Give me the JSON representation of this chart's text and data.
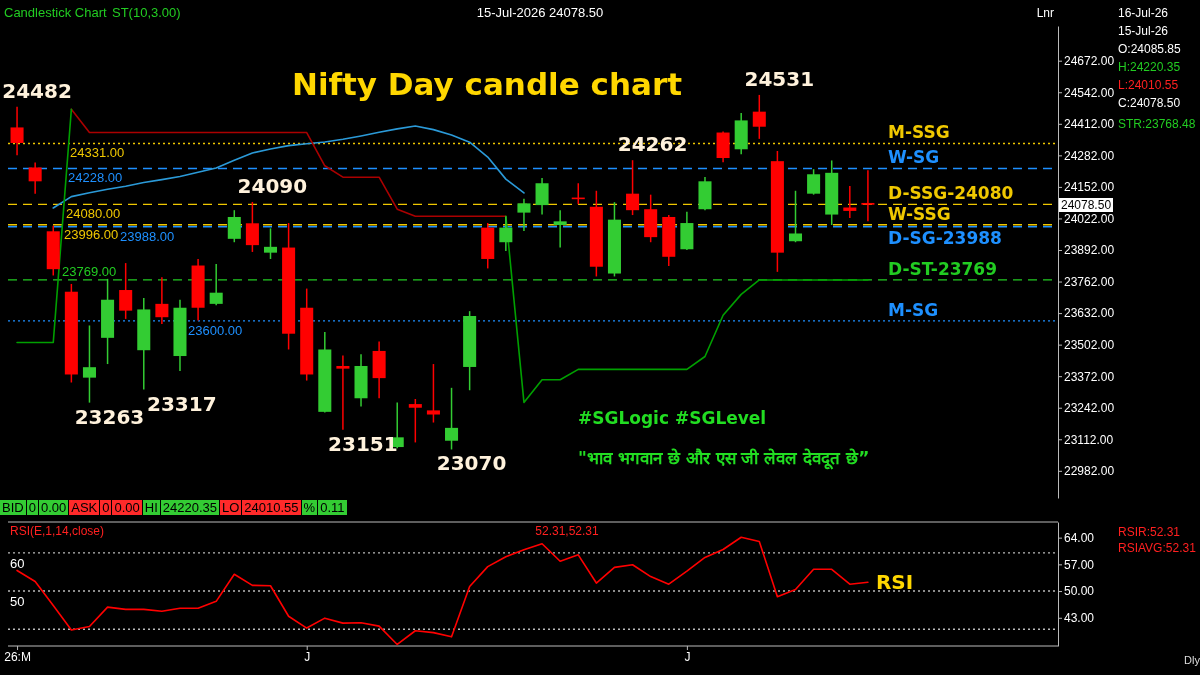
{
  "chart_data": [
    {
      "type": "candlestick",
      "title": "Nifty Day candle chart",
      "categories": [
        null,
        null,
        null,
        null,
        null,
        null,
        null,
        null,
        null,
        null,
        null,
        null,
        null,
        null,
        null,
        null,
        null,
        null,
        null,
        null,
        null,
        null,
        null,
        null,
        null,
        null,
        null,
        null,
        null,
        null,
        null,
        null,
        null,
        null,
        null,
        null,
        null,
        null,
        null,
        null,
        null,
        null,
        null,
        null,
        null,
        null,
        null,
        null,
        null,
        null,
        null,
        null,
        null,
        null,
        null,
        null,
        null,
        null
      ],
      "ohlc": [
        [
          24397,
          24482,
          24282,
          24333
        ],
        [
          24232,
          24253,
          24124,
          24175
        ],
        [
          23969,
          23992,
          23787,
          23813
        ],
        [
          23720,
          23752,
          23346,
          23379
        ],
        [
          23366,
          23581,
          23263,
          23409
        ],
        [
          23530,
          23773,
          23422,
          23687
        ],
        [
          23727,
          23838,
          23608,
          23642
        ],
        [
          23479,
          23694,
          23317,
          23647
        ],
        [
          23670,
          23780,
          23587,
          23615
        ],
        [
          23455,
          23687,
          23393,
          23654
        ],
        [
          23828,
          23855,
          23601,
          23654
        ],
        [
          23670,
          23834,
          23664,
          23716
        ],
        [
          23938,
          24056,
          23924,
          24028
        ],
        [
          24002,
          24090,
          23884,
          23912
        ],
        [
          23881,
          23981,
          23855,
          23905
        ],
        [
          23902,
          24003,
          23482,
          23547
        ],
        [
          23654,
          23733,
          23354,
          23379
        ],
        [
          23225,
          23554,
          23222,
          23482
        ],
        [
          23414,
          23457,
          23151,
          23403
        ],
        [
          23281,
          23462,
          23247,
          23414
        ],
        [
          23476,
          23515,
          23281,
          23364
        ],
        [
          23080,
          23264,
          23075,
          23120
        ],
        [
          23257,
          23278,
          23099,
          23242
        ],
        [
          23231,
          23422,
          23181,
          23214
        ],
        [
          23106,
          23324,
          23070,
          23159
        ],
        [
          23410,
          23640,
          23314,
          23620
        ],
        [
          23984,
          24003,
          23816,
          23855
        ],
        [
          23924,
          24031,
          23888,
          23984
        ],
        [
          24046,
          24103,
          23970,
          24084
        ],
        [
          24077,
          24189,
          24038,
          24167
        ],
        [
          23995,
          24056,
          23902,
          24010
        ],
        [
          24108,
          24167,
          24081,
          24104
        ],
        [
          24070,
          24136,
          23783,
          23823
        ],
        [
          23795,
          24089,
          23783,
          24017
        ],
        [
          24124,
          24262,
          24036,
          24056
        ],
        [
          24060,
          24120,
          23924,
          23945
        ],
        [
          24028,
          24036,
          23826,
          23864
        ],
        [
          23895,
          24050,
          23892,
          24003
        ],
        [
          24060,
          24193,
          24056,
          24175
        ],
        [
          24376,
          24380,
          24254,
          24271
        ],
        [
          24307,
          24457,
          24287,
          24426
        ],
        [
          24462,
          24531,
          24350,
          24400
        ],
        [
          24258,
          24300,
          23802,
          23881
        ],
        [
          23928,
          24136,
          23924,
          23960
        ],
        [
          24124,
          24225,
          24120,
          24204
        ],
        [
          24038,
          24261,
          23995,
          24210
        ],
        [
          24067,
          24156,
          24024,
          24053
        ],
        [
          24085.85,
          24220.35,
          24010.55,
          24078.5
        ],
        null,
        null,
        null,
        null,
        null,
        null,
        null,
        null,
        null,
        null
      ],
      "colors": [
        "#ff0000",
        "#ff0000",
        "#ff0000",
        "#ff0000",
        "#33cc33",
        "#33cc33",
        "#ff0000",
        "#33cc33",
        "#ff0000",
        "#33cc33",
        "#ff0000",
        "#33cc33",
        "#33cc33",
        "#ff0000",
        "#33cc33",
        "#ff0000",
        "#ff0000",
        "#33cc33",
        "#ff0000",
        "#33cc33",
        "#ff0000",
        "#33cc33",
        "#ff0000",
        "#ff0000",
        "#33cc33",
        "#33cc33",
        "#ff0000",
        "#33cc33",
        "#33cc33",
        "#33cc33",
        "#33cc33",
        "#ff0000",
        "#ff0000",
        "#33cc33",
        "#ff0000",
        "#ff0000",
        "#ff0000",
        "#33cc33",
        "#33cc33",
        "#ff0000",
        "#33cc33",
        "#ff0000",
        "#ff0000",
        "#33cc33",
        "#33cc33",
        "#33cc33",
        "#ff0000",
        "#ff0000",
        null,
        null,
        null,
        null,
        null,
        null,
        null,
        null,
        null,
        null
      ],
      "series": [
        {
          "type": "line",
          "color": "#2b9ad8",
          "values": [
            null,
            null,
            24065,
            24112,
            24128,
            24142,
            24155,
            24170,
            24182,
            24195,
            24212,
            24230,
            24262,
            24292,
            24308,
            24322,
            24330,
            24337,
            24348,
            24362,
            24377,
            24391,
            24403,
            24388,
            24366,
            24336,
            24275,
            24184,
            24127,
            null,
            null,
            null,
            null,
            null,
            null,
            null,
            null,
            null,
            null,
            null,
            null,
            null,
            null,
            null,
            null,
            null,
            null,
            null,
            null,
            null,
            null,
            null,
            null,
            null,
            null,
            null,
            null,
            null
          ]
        },
        {
          "type": "line",
          "color": "#aa0000",
          "values": [
            null,
            null,
            null,
            24472,
            24376,
            24376,
            24376,
            24376,
            24376,
            24376,
            24376,
            24376,
            24376,
            24376,
            24376,
            24376,
            24376,
            24239,
            24192,
            24192,
            24192,
            24060,
            24031,
            24031,
            24031,
            24031,
            24031,
            24031,
            null,
            null,
            null,
            null,
            null,
            null,
            null,
            null,
            null,
            null,
            null,
            null,
            null,
            null,
            null,
            null,
            null,
            null,
            null,
            null,
            null,
            null,
            null,
            null,
            null,
            null,
            null,
            null,
            null,
            null
          ]
        },
        {
          "type": "line",
          "color": "#00a000",
          "values": [
            23511,
            23511,
            23511,
            24472,
            null,
            null,
            null,
            null,
            null,
            null,
            null,
            null,
            null,
            null,
            null,
            null,
            null,
            null,
            null,
            null,
            null,
            null,
            null,
            null,
            null,
            null,
            null,
            24031,
            23264,
            23357,
            23357,
            23400,
            23400,
            23400,
            23400,
            23400,
            23400,
            23400,
            23453,
            23623,
            23709,
            23768.48,
            23768.48,
            23768.48,
            23768.48,
            23768.48,
            23768.48,
            23768.48,
            null,
            null,
            null,
            null,
            null,
            null,
            null,
            null,
            null,
            null
          ]
        }
      ],
      "ylim": [
        22870,
        24815
      ],
      "yticks": [
        {
          "value": 24672,
          "label": "24672.00"
        },
        {
          "value": 24542,
          "label": "24542.00"
        },
        {
          "value": 24412,
          "label": "24412.00"
        },
        {
          "value": 24282,
          "label": "24282.00"
        },
        {
          "value": 24152,
          "label": "24152.00"
        },
        {
          "value": 24022,
          "label": "24022.00"
        },
        {
          "value": 23892,
          "label": "23892.00"
        },
        {
          "value": 23762,
          "label": "23762.00"
        },
        {
          "value": 23632,
          "label": "23632.00"
        },
        {
          "value": 23502,
          "label": "23502.00"
        },
        {
          "value": 23372,
          "label": "23372.00"
        },
        {
          "value": 23242,
          "label": "23242.00"
        },
        {
          "value": 23112,
          "label": "23112.00"
        },
        {
          "value": 22982,
          "label": "22982.00"
        }
      ],
      "tick_labels": "y",
      "ref_lines": [
        {
          "axis": "y",
          "value": 24331,
          "label": "M-SSG",
          "color": "#f0c800",
          "line_style": "dotted"
        },
        {
          "axis": "y",
          "value": 24228,
          "label": "W-SG",
          "color": "#1e90ff",
          "line_style": "dashed"
        },
        {
          "axis": "y",
          "value": 24080,
          "label": "D-SSG-24080",
          "color": "#f0c800",
          "line_style": "dashed"
        },
        {
          "axis": "y",
          "value": 23996,
          "label": "W-SSG",
          "color": "#f0c800",
          "line_style": "dashed"
        },
        {
          "axis": "y",
          "value": 23988,
          "label": "D-SG-23988",
          "color": "#1e90ff",
          "line_style": "dashed"
        },
        {
          "axis": "y",
          "value": 23769,
          "label": "D-ST-23769",
          "color": "#22cc22",
          "line_style": "dashed"
        },
        {
          "axis": "y",
          "value": 23600,
          "label": "M-SG",
          "color": "#1e90ff",
          "line_style": "dotted"
        }
      ],
      "annotations": [
        "Candlestick Chart",
        "ST(10,3.00)",
        "15-Jul-2026 24078.50",
        "Lnr",
        "16-Jul-26",
        "15-Jul-26",
        "O:24085.85",
        "H:24220.35",
        "L:24010.55",
        "C:24078.50",
        "STR:23768.48",
        "#SGLogic #SGLevel",
        "\"भाव भगवान छे और एस जी लेवल देवदूत छे”",
        "BID",
        "0",
        "0.00",
        "ASK",
        "0",
        "0.00",
        "HI",
        "24220.35",
        "LO",
        "24010.55",
        "%",
        "0.11",
        "24482",
        "23263",
        "23317",
        "24090",
        "23151",
        "23070",
        "24262",
        "24531",
        {
          "text": "24331.00",
          "y": 24331
        },
        {
          "text": "24228.00",
          "y": 24228
        },
        {
          "text": "24080.00",
          "y": 24080
        },
        {
          "text": "23996.00",
          "y": 23996
        },
        {
          "text": "23988.00",
          "y": 23988
        },
        {
          "text": "23769.00",
          "y": 23769
        },
        {
          "text": "23600.00",
          "y": 23600
        },
        "24078.50"
      ]
    },
    {
      "type": "line",
      "title": "RSI(E,1,14,close)",
      "categories": [
        "26:M",
        null,
        null,
        null,
        null,
        null,
        null,
        null,
        null,
        null,
        null,
        null,
        null,
        null,
        null,
        null,
        "J",
        null,
        null,
        null,
        null,
        null,
        null,
        null,
        null,
        null,
        null,
        null,
        null,
        null,
        null,
        null,
        null,
        null,
        null,
        null,
        null,
        "J",
        null,
        null,
        null,
        null,
        null,
        null,
        null,
        null,
        null,
        null,
        null,
        null,
        null,
        null,
        null,
        null,
        null,
        null,
        null,
        null
      ],
      "series": [
        {
          "name": "RSI",
          "color": "#ff0000",
          "values": [
            55.4,
            52.5,
            46.2,
            39.8,
            40.7,
            45.8,
            45.2,
            45.2,
            44.7,
            45.5,
            45.5,
            47.3,
            54.4,
            51.5,
            51.4,
            43.4,
            40.3,
            42.9,
            41.6,
            41.7,
            40.8,
            36,
            39.6,
            39.1,
            38.0,
            51.2,
            56.4,
            59.0,
            60.8,
            62.4,
            57.8,
            59.5,
            52.1,
            56.2,
            56.9,
            53.8,
            51.8,
            55.2,
            58.8,
            60.9,
            64.1,
            63.0,
            48.5,
            50.4,
            55.7,
            55.7,
            51.8,
            52.31,
            null,
            null,
            null,
            null,
            null,
            null,
            null,
            null,
            null,
            null
          ]
        }
      ],
      "ylim": [
        35.6,
        68.1
      ],
      "yticks": [
        {
          "value": 64,
          "label": "64.00"
        },
        {
          "value": 57,
          "label": "57.00"
        },
        {
          "value": 50,
          "label": "50.00"
        },
        {
          "value": 43,
          "label": "43.00"
        }
      ],
      "ref_lines": [
        {
          "axis": "y",
          "value": 60,
          "label": "60",
          "color": "#bbbbbb",
          "line_style": "dotted"
        },
        {
          "axis": "y",
          "value": 50,
          "label": "50",
          "color": "#bbbbbb",
          "line_style": "dotted"
        },
        {
          "axis": "y",
          "value": 40,
          "color": "#bbbbbb",
          "line_style": "dotted"
        }
      ],
      "annotations": [
        "52.31,52.31",
        "RSIR:52.31",
        "RSIAVG:52.31",
        "Dly"
      ]
    }
  ]
}
